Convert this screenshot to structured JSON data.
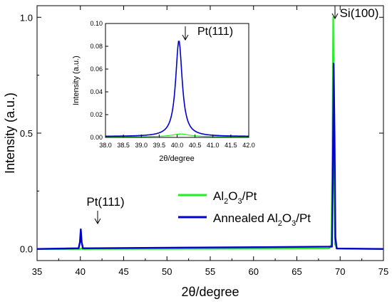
{
  "chart_data": [
    {
      "type": "line",
      "xlabel": "2θ/degree",
      "ylabel": "Intensity (a.u.)",
      "xlim": [
        35,
        75
      ],
      "ylim": [
        -0.05,
        1.05
      ],
      "x_ticks": [
        35,
        40,
        45,
        50,
        55,
        60,
        65,
        70,
        75
      ],
      "y_ticks": [
        0.0,
        0.5,
        1.0
      ],
      "x_tick_labels": [
        "35",
        "40",
        "45",
        "50",
        "55",
        "60",
        "65",
        "70",
        "75"
      ],
      "y_tick_labels": [
        "0.0",
        "0.5",
        "1.0"
      ],
      "grid": false,
      "legend": "center-right",
      "series": [
        {
          "name": "Al2O3/Pt",
          "legend_parts": [
            "Al",
            "2",
            "O",
            "3",
            "/Pt"
          ],
          "color": "#22ee22",
          "points": [
            [
              35,
              0.0
            ],
            [
              40.0,
              0.0
            ],
            [
              40.1,
              0.003
            ],
            [
              40.2,
              0.0
            ],
            [
              68.7,
              0.002
            ],
            [
              69.0,
              0.02
            ],
            [
              69.1,
              0.4
            ],
            [
              69.2,
              1.0
            ],
            [
              69.3,
              0.4
            ],
            [
              69.4,
              0.02
            ],
            [
              69.7,
              0.002
            ],
            [
              75,
              0.0
            ]
          ]
        },
        {
          "name": "Annealed Al2O3/Pt",
          "legend_parts": [
            "Annealed Al",
            "2",
            "O",
            "3",
            "/Pt"
          ],
          "color": "#0000cc",
          "points": [
            [
              35,
              0.0
            ],
            [
              39.8,
              0.003
            ],
            [
              39.95,
              0.03
            ],
            [
              40.05,
              0.085
            ],
            [
              40.15,
              0.03
            ],
            [
              40.3,
              0.003
            ],
            [
              69.05,
              0.01
            ],
            [
              69.15,
              0.3
            ],
            [
              69.25,
              0.8
            ],
            [
              69.35,
              0.5
            ],
            [
              69.45,
              0.05
            ],
            [
              69.6,
              0.002
            ],
            [
              75,
              0.0
            ]
          ]
        }
      ],
      "annotations": [
        {
          "text": "Pt(111)",
          "x": 40.1,
          "y": 0.085
        },
        {
          "text": "Si(100)",
          "x": 69.2,
          "y": 1.0
        }
      ]
    },
    {
      "type": "line",
      "role": "inset",
      "xlabel": "2θ/degree",
      "ylabel": "Intensity (a.u.)",
      "xlim": [
        38.0,
        42.0
      ],
      "ylim": [
        0.0,
        0.1
      ],
      "x_ticks": [
        38.0,
        38.5,
        39.0,
        39.5,
        40.0,
        40.5,
        41.0,
        41.5,
        42.0
      ],
      "y_ticks": [
        0.0,
        0.02,
        0.04,
        0.06,
        0.08,
        0.1
      ],
      "x_tick_labels": [
        "38.0",
        "38.5",
        "39.0",
        "39.5",
        "40.0",
        "40.5",
        "41.0",
        "41.5",
        "42.0"
      ],
      "y_tick_labels": [
        "0.00",
        "0.02",
        "0.04",
        "0.06",
        "0.08",
        "0.10"
      ],
      "series": [
        {
          "color": "#22ee22",
          "peak_x": 40.1,
          "peak_y": 0.003,
          "width": 0.3,
          "baseline": 0.0005
        },
        {
          "color": "#0000cc",
          "peak_x": 40.05,
          "peak_y": 0.085,
          "width": 0.11,
          "baseline": 0.0008
        }
      ],
      "annotations": [
        {
          "text": "Pt(111)",
          "x": 40.05,
          "y": 0.085
        }
      ]
    }
  ]
}
